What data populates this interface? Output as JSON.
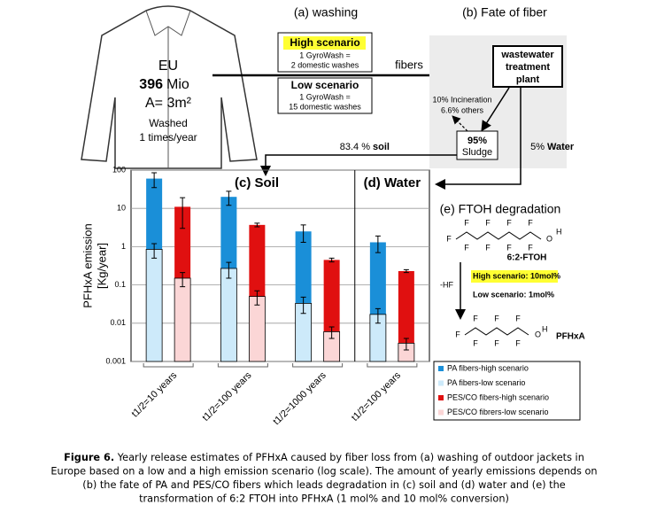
{
  "figure": {
    "jacket": {
      "region": "EU",
      "pop_number": "396",
      "pop_unit": "Mio",
      "area": "A= 3m²",
      "washed": "Washed",
      "freq": "1 times/year"
    },
    "a": {
      "title": "(a) washing",
      "high": "High scenario",
      "high_l1": "1 GyroWash =",
      "high_l2": "2 domestic washes",
      "low": "Low scenario",
      "low_l1": "1 GyroWash =",
      "low_l2": "15 domestic washes",
      "fibers": "fibers"
    },
    "b": {
      "title": "(b) Fate of fiber",
      "wwtp1": "wastewater",
      "wwtp2": "treatment",
      "wwtp3": "plant",
      "incin1": "10% Incineration",
      "incin2": "6.6% others",
      "sludge_pct": "95%",
      "sludge": "Sludge",
      "soil_pct": "83.4 %",
      "soil": "soil",
      "water_pct": "5%",
      "water": "Water"
    },
    "e": {
      "title": "(e) FTOH degradation",
      "atom_F": "F",
      "atom_O": "O",
      "atom_H": "H",
      "ftoh": "6:2-FTOH",
      "hf": "-HF",
      "high": "High scenario: 10mol%",
      "low": "Low scenario: 1mol%",
      "pfhxa": "PFHxA"
    }
  },
  "chart_data": {
    "type": "bar",
    "log_scale": true,
    "grid": true,
    "y_label": [
      "PFHxA emission",
      "[Kg/year]"
    ],
    "panels": [
      "(c) Soil",
      "(d) Water"
    ],
    "categories": [
      "t1/2=10 years",
      "t1/2=100 years",
      "t1/2=1000 years",
      "t1/2=100 years"
    ],
    "ylim": [
      0.001,
      100
    ],
    "yticks": [
      0.001,
      0.01,
      0.1,
      1,
      10,
      100
    ],
    "legend": "bottom-right",
    "series": [
      {
        "name": "PA fibers-high scenario",
        "color": "#1a8fd8",
        "values": [
          60,
          20,
          2.5,
          1.3
        ],
        "errors": [
          25,
          8,
          1.2,
          0.6
        ]
      },
      {
        "name": "PA fibers-low scenario",
        "color": "#cdeafa",
        "values": [
          0.85,
          0.27,
          0.033,
          0.017
        ],
        "errors": [
          0.35,
          0.12,
          0.015,
          0.007
        ]
      },
      {
        "name": "PES/CO fibers-high scenario",
        "color": "#e01010",
        "values": [
          11,
          3.7,
          0.45,
          0.23
        ],
        "errors": [
          8,
          0.4,
          0.05,
          0.02
        ]
      },
      {
        "name": "PES/CO fibrers-low scenario",
        "color": "#fbd6d6",
        "values": [
          0.15,
          0.05,
          0.006,
          0.003
        ],
        "errors": [
          0.06,
          0.02,
          0.002,
          0.001
        ]
      }
    ]
  },
  "caption": {
    "label": "Figure 6.",
    "lines": [
      " Yearly release estimates of PFHxA caused by fiber loss from (a) washing of outdoor jackets in",
      "Europe based on a low and a high emission scenario (log scale). The amount of yearly emissions depends on",
      "(b) the fate of PA and PES/CO fibers which leads degradation in (c) soil and (d) water and (e) the",
      "transformation of 6:2 FTOH into PFHxA (1 mol% and 10 mol% conversion)"
    ]
  }
}
